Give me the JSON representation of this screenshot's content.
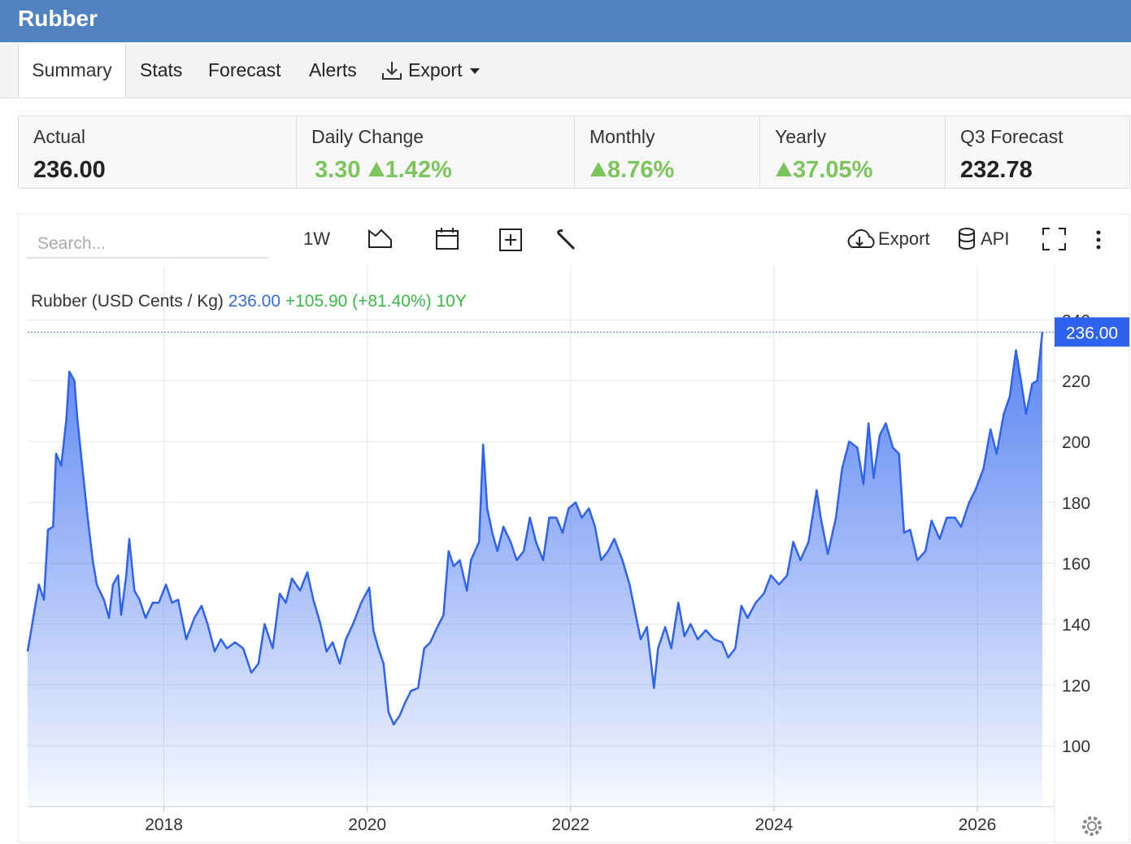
{
  "header": {
    "title": "Rubber"
  },
  "tabs": [
    "Summary",
    "Stats",
    "Forecast",
    "Alerts",
    "Export"
  ],
  "stats": [
    {
      "label": "Actual",
      "value": "236.00"
    },
    {
      "label": "Daily Change",
      "value": "3.30",
      "change": "1.42%"
    },
    {
      "label": "Monthly",
      "change": "8.76%"
    },
    {
      "label": "Yearly",
      "change": "37.05%"
    },
    {
      "label": "Q3 Forecast",
      "value": "232.78"
    }
  ],
  "toolbar": {
    "search_placeholder": "Search...",
    "range": "1W",
    "export": "Export",
    "api": "API"
  },
  "chart_data": {
    "type": "area",
    "series_label": "Rubber (USD Cents / Kg)",
    "current_label": "236.00",
    "current": 236,
    "change_label": "+105.90 (+81.40%) 10Y",
    "x": [
      2016.66,
      2016.72,
      2016.77,
      2016.82,
      2016.86,
      2016.91,
      2016.94,
      2016.99,
      2017.04,
      2017.07,
      2017.12,
      2017.15,
      2017.2,
      2017.25,
      2017.3,
      2017.34,
      2017.41,
      2017.46,
      2017.5,
      2017.55,
      2017.58,
      2017.63,
      2017.66,
      2017.71,
      2017.76,
      2017.82,
      2017.89,
      2017.95,
      2018.02,
      2018.08,
      2018.14,
      2018.22,
      2018.3,
      2018.37,
      2018.43,
      2018.5,
      2018.56,
      2018.62,
      2018.7,
      2018.78,
      2018.86,
      2018.93,
      2018.99,
      2019.07,
      2019.14,
      2019.2,
      2019.26,
      2019.34,
      2019.41,
      2019.47,
      2019.54,
      2019.6,
      2019.66,
      2019.73,
      2019.79,
      2019.86,
      2019.94,
      2020.02,
      2020.06,
      2020.11,
      2020.16,
      2020.21,
      2020.26,
      2020.32,
      2020.37,
      2020.43,
      2020.5,
      2020.56,
      2020.62,
      2020.69,
      2020.75,
      2020.8,
      2020.85,
      2020.91,
      2020.98,
      2021.02,
      2021.1,
      2021.14,
      2021.18,
      2021.23,
      2021.28,
      2021.34,
      2021.41,
      2021.47,
      2021.54,
      2021.6,
      2021.66,
      2021.73,
      2021.79,
      2021.86,
      2021.92,
      2021.98,
      2022.05,
      2022.11,
      2022.18,
      2022.24,
      2022.3,
      2022.37,
      2022.43,
      2022.51,
      2022.58,
      2022.64,
      2022.69,
      2022.75,
      2022.82,
      2022.86,
      2022.93,
      2022.99,
      2023.06,
      2023.12,
      2023.18,
      2023.25,
      2023.33,
      2023.41,
      2023.49,
      2023.55,
      2023.62,
      2023.68,
      2023.74,
      2023.82,
      2023.9,
      2023.97,
      2024.05,
      2024.13,
      2024.19,
      2024.26,
      2024.34,
      2024.42,
      2024.46,
      2024.53,
      2024.61,
      2024.67,
      2024.74,
      2024.82,
      2024.88,
      2024.93,
      2024.98,
      2025.04,
      2025.1,
      2025.17,
      2025.23,
      2025.28,
      2025.34,
      2025.41,
      2025.49,
      2025.55,
      2025.63,
      2025.7,
      2025.78,
      2025.84,
      2025.92,
      2025.98,
      2026.06,
      2026.13,
      2026.19,
      2026.26,
      2026.32,
      2026.38,
      2026.43,
      2026.48,
      2026.54,
      2026.59,
      2026.64
    ],
    "values": [
      131,
      143,
      153,
      148,
      171,
      172,
      196,
      192,
      207,
      223,
      220,
      207,
      191,
      175,
      161,
      153,
      148,
      142,
      153,
      156,
      143,
      156,
      168,
      151,
      148,
      142,
      147,
      147,
      153,
      147,
      148,
      135,
      142,
      146,
      140,
      131,
      135,
      132,
      134,
      132,
      124,
      127,
      140,
      132,
      150,
      147,
      155,
      151,
      157,
      148,
      140,
      131,
      134,
      127,
      135,
      140,
      147,
      152,
      138,
      132,
      127,
      111,
      107,
      110,
      114,
      118,
      119,
      132,
      134,
      139,
      143,
      164,
      159,
      161,
      151,
      161,
      167,
      199,
      178,
      170,
      164,
      172,
      167,
      161,
      164,
      175,
      167,
      161,
      175,
      175,
      170,
      178,
      180,
      175,
      178,
      172,
      161,
      164,
      168,
      161,
      153,
      143,
      135,
      139,
      119,
      132,
      139,
      132,
      147,
      136,
      140,
      135,
      138,
      135,
      134,
      129,
      132,
      146,
      142,
      147,
      150,
      156,
      153,
      156,
      167,
      161,
      167,
      184,
      175,
      163,
      175,
      191,
      200,
      198,
      186,
      206,
      188,
      202,
      206,
      198,
      196,
      170,
      171,
      161,
      164,
      174,
      168,
      175,
      175,
      172,
      180,
      184,
      191,
      204,
      196,
      209,
      215,
      230,
      220,
      209,
      219,
      220,
      236
    ],
    "color": "#2f62ee",
    "xlim": [
      2016.66,
      2026.76
    ],
    "ylim": [
      80,
      258
    ],
    "xticks": [
      2018,
      2020,
      2022,
      2024,
      2026
    ],
    "yticks": [
      100,
      120,
      140,
      160,
      180,
      200,
      220,
      240
    ],
    "grid": true
  }
}
